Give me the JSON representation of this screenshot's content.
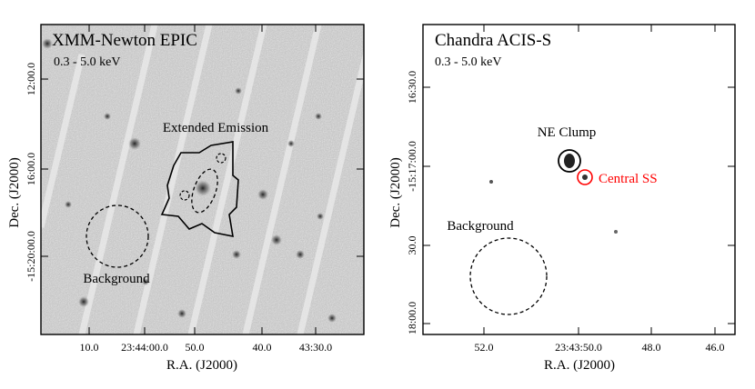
{
  "left_panel": {
    "title": "XMM-Newton EPIC",
    "band": "0.3 - 5.0 keV",
    "xlabel": "R.A. (J2000)",
    "ylabel": "Dec. (J2000)",
    "x_ticks": [
      "10.0",
      "23:44:00.0",
      "50.0",
      "40.0",
      "43:30.0"
    ],
    "y_ticks": [
      "12:00.0",
      "16:00.0",
      "-15:20:00.0"
    ],
    "regions": {
      "extended_label": "Extended Emission",
      "background_label": "Background"
    }
  },
  "right_panel": {
    "title": "Chandra ACIS-S",
    "band": "0.3 - 5.0 keV",
    "xlabel": "R.A. (J2000)",
    "ylabel": "Dec. (J2000)",
    "x_ticks": [
      "52.0",
      "23:43:50.0",
      "48.0",
      "46.0"
    ],
    "y_ticks": [
      "16:30.0",
      "-15:17:00.0",
      "30.0",
      "18:00.0"
    ],
    "regions": {
      "clump_label": "NE Clump",
      "central_label": "Central SS",
      "background_label": "Background"
    }
  },
  "colors": {
    "central_region": "#ff0000",
    "contour": "#000000"
  }
}
